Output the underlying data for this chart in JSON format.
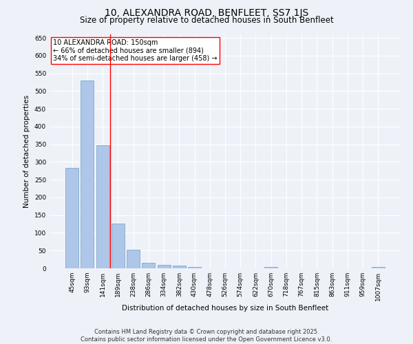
{
  "title": "10, ALEXANDRA ROAD, BENFLEET, SS7 1JS",
  "subtitle": "Size of property relative to detached houses in South Benfleet",
  "xlabel": "Distribution of detached houses by size in South Benfleet",
  "ylabel": "Number of detached properties",
  "categories": [
    "45sqm",
    "93sqm",
    "141sqm",
    "189sqm",
    "238sqm",
    "286sqm",
    "334sqm",
    "382sqm",
    "430sqm",
    "478sqm",
    "526sqm",
    "574sqm",
    "622sqm",
    "670sqm",
    "718sqm",
    "767sqm",
    "815sqm",
    "863sqm",
    "911sqm",
    "959sqm",
    "1007sqm"
  ],
  "values": [
    283,
    530,
    348,
    126,
    52,
    15,
    10,
    7,
    4,
    0,
    0,
    0,
    0,
    4,
    0,
    0,
    0,
    0,
    0,
    0,
    3
  ],
  "bar_color": "#aec6e8",
  "bar_edge_color": "#6a9fc8",
  "vline_color": "red",
  "vline_x_index": 2,
  "annotation_title": "10 ALEXANDRA ROAD: 150sqm",
  "annotation_line1": "← 66% of detached houses are smaller (894)",
  "annotation_line2": "34% of semi-detached houses are larger (458) →",
  "annotation_box_color": "white",
  "annotation_box_edge": "red",
  "ylim": [
    0,
    660
  ],
  "yticks": [
    0,
    50,
    100,
    150,
    200,
    250,
    300,
    350,
    400,
    450,
    500,
    550,
    600,
    650
  ],
  "footer_line1": "Contains HM Land Registry data © Crown copyright and database right 2025.",
  "footer_line2": "Contains public sector information licensed under the Open Government Licence v3.0.",
  "bg_color": "#eef2f8",
  "grid_color": "white",
  "title_fontsize": 10,
  "subtitle_fontsize": 8.5,
  "axis_label_fontsize": 7.5,
  "tick_fontsize": 6.5,
  "annotation_fontsize": 7,
  "footer_fontsize": 6
}
